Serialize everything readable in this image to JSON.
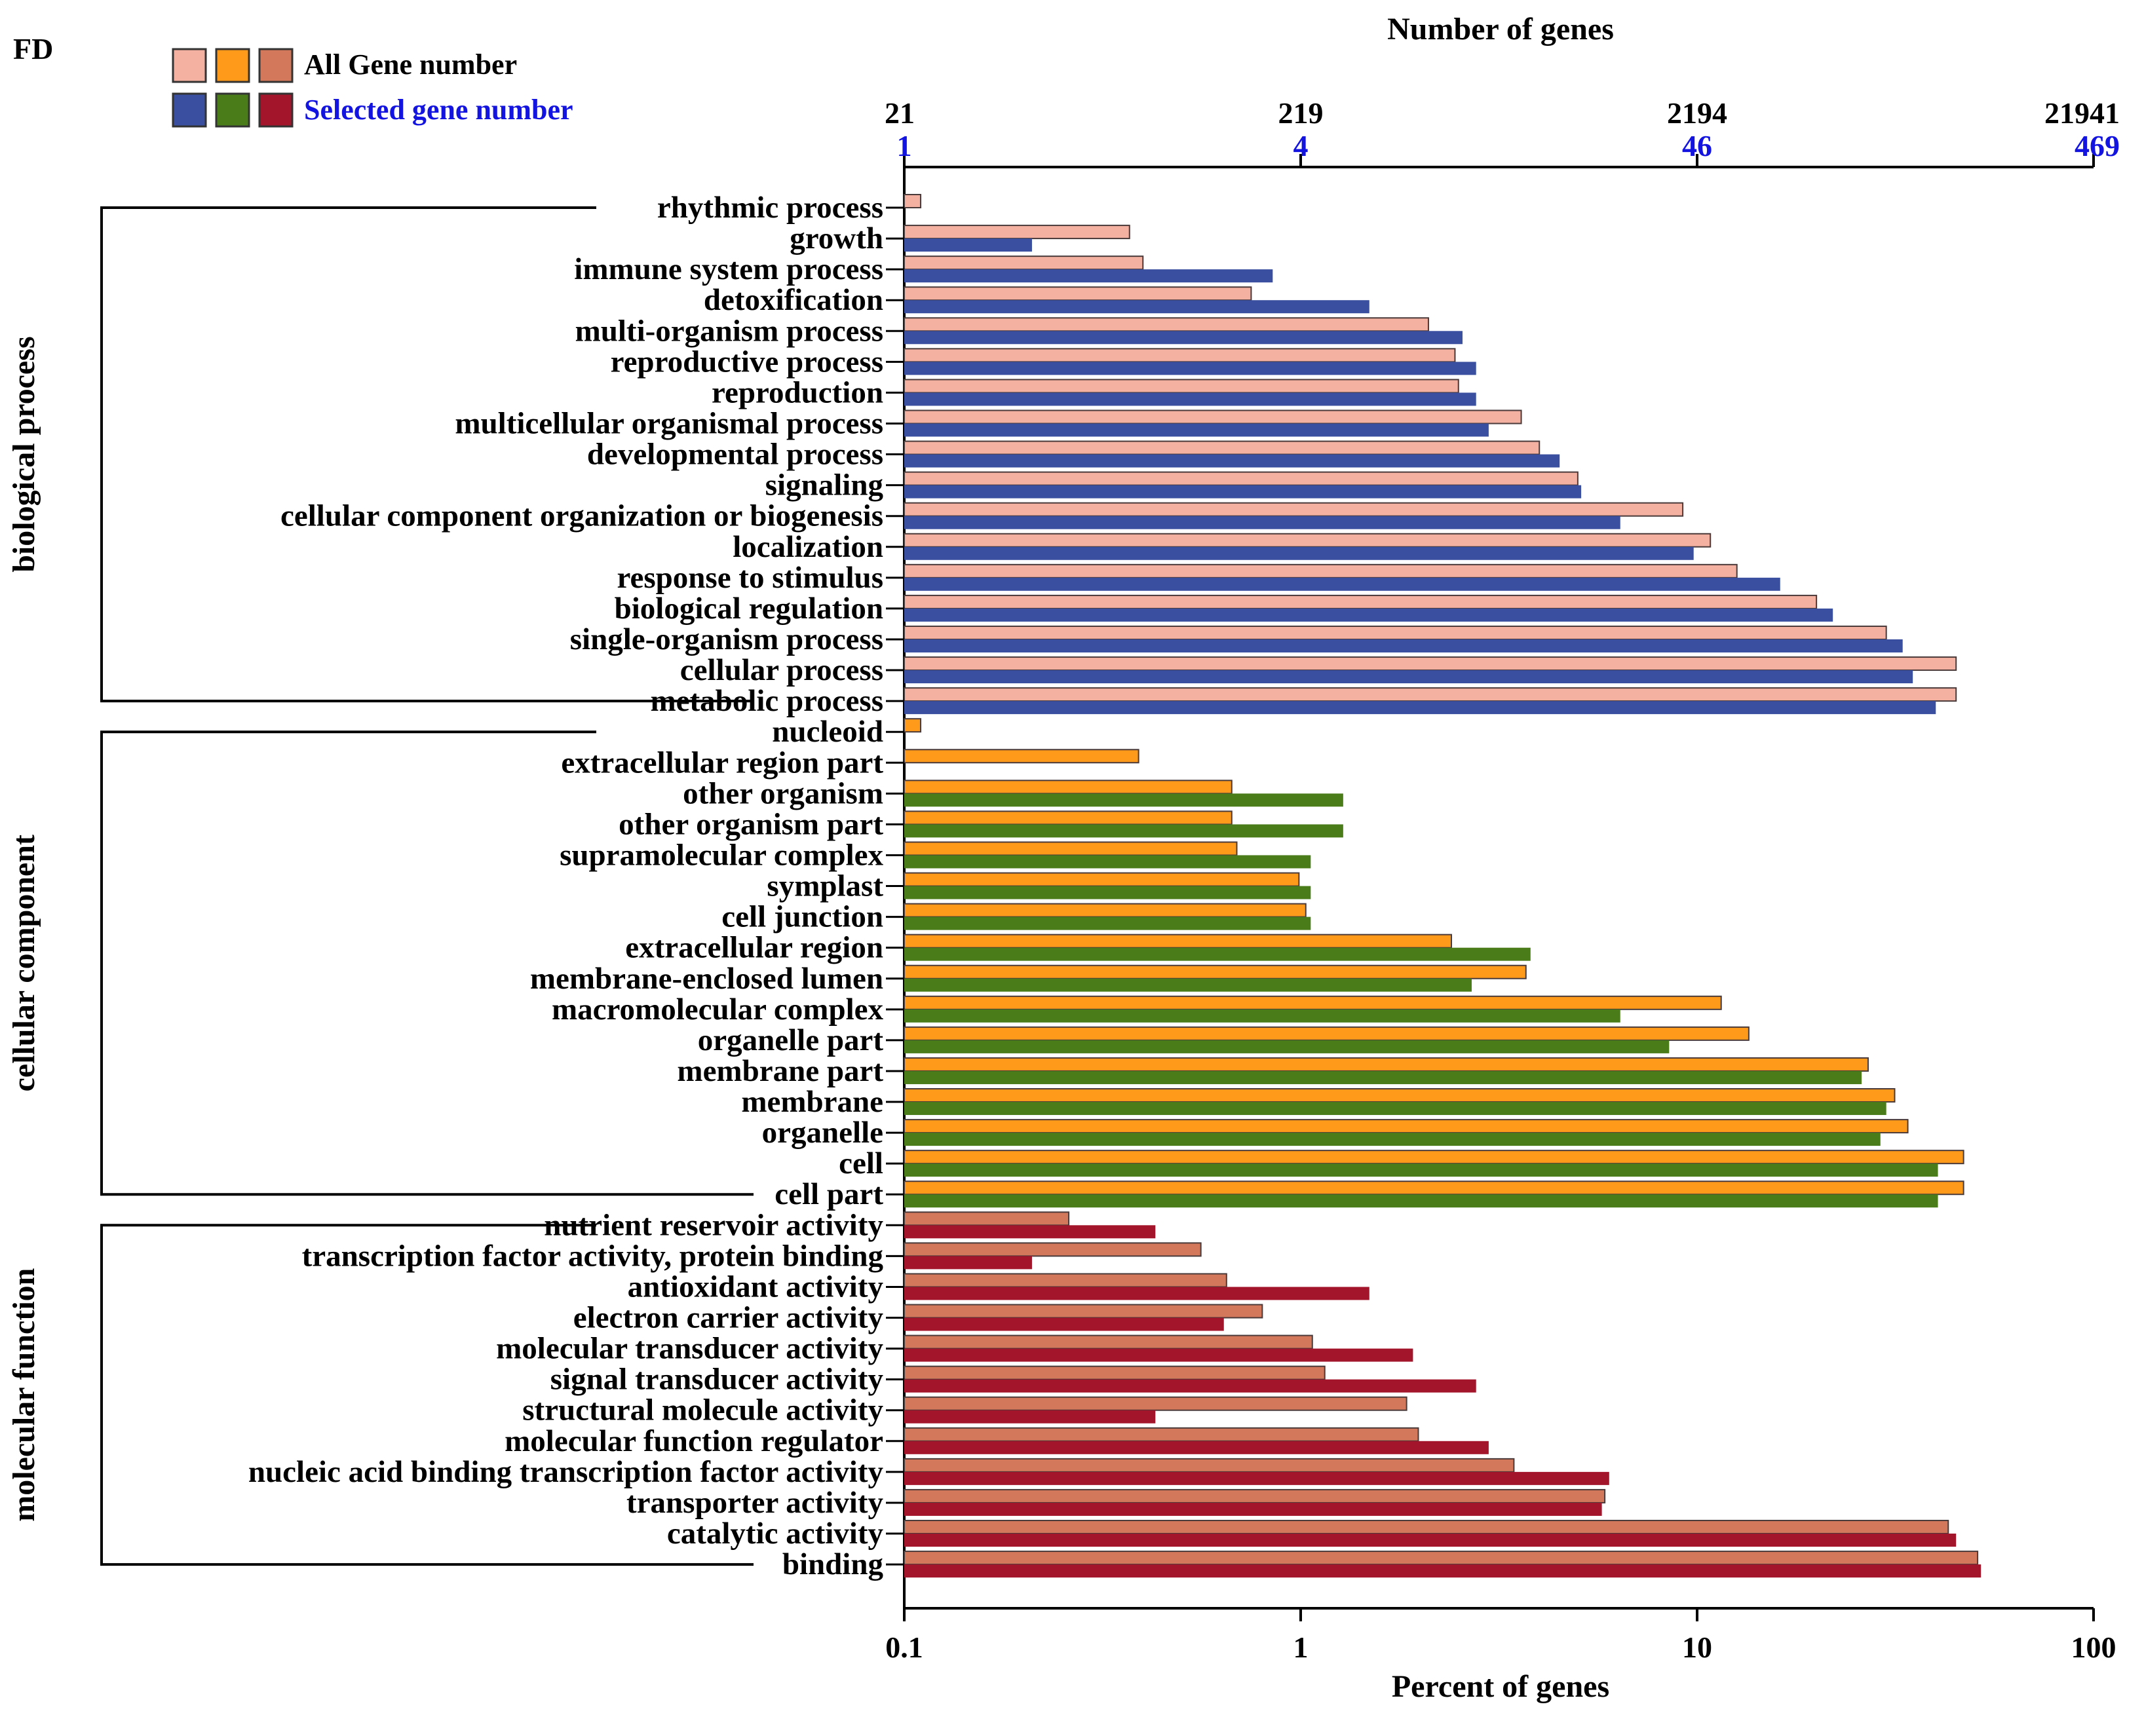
{
  "colors": {
    "bp_all": "#f4b0a0",
    "bp_sel": "#3a4f9f",
    "cc_all": "#ff9a1a",
    "cc_sel": "#4a7c1a",
    "mf_all": "#d3785a",
    "mf_sel": "#a3152a",
    "selected_label": "#1414e0",
    "line": "#000000"
  },
  "chart_data": {
    "type": "bar",
    "orientation": "horizontal",
    "panel_label": "FD",
    "top_axis_title": "Number of genes",
    "bottom_axis_title": "Percent of genes",
    "x_scale": "log",
    "xlim": [
      0.1,
      100
    ],
    "bottom_ticks": [
      {
        "value": 0.1,
        "label": "0.1"
      },
      {
        "value": 1,
        "label": "1"
      },
      {
        "value": 10,
        "label": "10"
      },
      {
        "value": 100,
        "label": "100"
      }
    ],
    "top_ticks_all": [
      {
        "value": 0.1,
        "label": "21"
      },
      {
        "value": 1,
        "label": "219"
      },
      {
        "value": 10,
        "label": "2194"
      },
      {
        "value": 100,
        "label": "21941"
      }
    ],
    "top_ticks_selected": [
      {
        "value": 0.1,
        "label": "1"
      },
      {
        "value": 1,
        "label": "4"
      },
      {
        "value": 10,
        "label": "46"
      },
      {
        "value": 100,
        "label": "469"
      }
    ],
    "legend": {
      "all_label": "All Gene number",
      "selected_label": "Selected gene number"
    },
    "series_names": [
      "All Gene number",
      "Selected gene number"
    ],
    "groups": [
      {
        "name": "biological process",
        "all_color_key": "bp_all",
        "sel_color_key": "bp_sel",
        "categories": [
          {
            "label": "rhythmic  process",
            "all": 0.11,
            "selected": null
          },
          {
            "label": "growth",
            "all": 0.37,
            "selected": 0.21
          },
          {
            "label": "immune system  process",
            "all": 0.4,
            "selected": 0.85
          },
          {
            "label": "detoxification",
            "all": 0.75,
            "selected": 1.49
          },
          {
            "label": "multi-organism  process",
            "all": 2.1,
            "selected": 2.56
          },
          {
            "label": "reproductive  process",
            "all": 2.45,
            "selected": 2.77
          },
          {
            "label": "reproduction",
            "all": 2.5,
            "selected": 2.77
          },
          {
            "label": "multicellular organismal  process",
            "all": 3.6,
            "selected": 2.98
          },
          {
            "label": "developmental  process",
            "all": 4.0,
            "selected": 4.5
          },
          {
            "label": "signaling",
            "all": 5.0,
            "selected": 5.1
          },
          {
            "label": "cellular component organization or biogenesis",
            "all": 9.2,
            "selected": 6.4
          },
          {
            "label": "localization",
            "all": 10.8,
            "selected": 9.8
          },
          {
            "label": "response to  stimulus",
            "all": 12.6,
            "selected": 16.2
          },
          {
            "label": "biological  regulation",
            "all": 20.0,
            "selected": 22.0
          },
          {
            "label": "single-organism  process",
            "all": 30.0,
            "selected": 33.0
          },
          {
            "label": "cellular  process",
            "all": 45.0,
            "selected": 35.0
          },
          {
            "label": "metabolic  process",
            "all": 45.0,
            "selected": 40.0
          }
        ]
      },
      {
        "name": "cellular component",
        "all_color_key": "cc_all",
        "sel_color_key": "cc_sel",
        "categories": [
          {
            "label": "nucleoid",
            "all": 0.11,
            "selected": null
          },
          {
            "label": "extracellular region part",
            "all": 0.39,
            "selected": null
          },
          {
            "label": "other   organism",
            "all": 0.67,
            "selected": 1.28
          },
          {
            "label": "other organism part",
            "all": 0.67,
            "selected": 1.28
          },
          {
            "label": "supramolecular complex",
            "all": 0.69,
            "selected": 1.06
          },
          {
            "label": "symplast",
            "all": 0.99,
            "selected": 1.06
          },
          {
            "label": "cell junction",
            "all": 1.03,
            "selected": 1.06
          },
          {
            "label": "extracellular region",
            "all": 2.4,
            "selected": 3.8
          },
          {
            "label": "membrane-enclosed lumen",
            "all": 3.7,
            "selected": 2.7
          },
          {
            "label": "macromolecular complex",
            "all": 11.5,
            "selected": 6.4
          },
          {
            "label": "organelle part",
            "all": 13.5,
            "selected": 8.5
          },
          {
            "label": "membrane part",
            "all": 27.0,
            "selected": 26.0
          },
          {
            "label": "membrane",
            "all": 31.5,
            "selected": 30.0
          },
          {
            "label": "organelle",
            "all": 34.0,
            "selected": 29.0
          },
          {
            "label": "cell",
            "all": 47.0,
            "selected": 40.5
          },
          {
            "label": "cell part",
            "all": 47.0,
            "selected": 40.5
          }
        ]
      },
      {
        "name": "molecular function",
        "all_color_key": "mf_all",
        "sel_color_key": "mf_sel",
        "categories": [
          {
            "label": "nutrient  reservoir activity",
            "all": 0.26,
            "selected": 0.43
          },
          {
            "label": "transcription factor activity, protein binding",
            "all": 0.56,
            "selected": 0.21
          },
          {
            "label": "antioxidant activity",
            "all": 0.65,
            "selected": 1.49
          },
          {
            "label": "electron carrier activity",
            "all": 0.8,
            "selected": 0.64
          },
          {
            "label": "molecular transducer activity",
            "all": 1.07,
            "selected": 1.92
          },
          {
            "label": "signal transducer activity",
            "all": 1.15,
            "selected": 2.77
          },
          {
            "label": "structural molecule activity",
            "all": 1.85,
            "selected": 0.43
          },
          {
            "label": "molecular function regulator",
            "all": 1.98,
            "selected": 2.98
          },
          {
            "label": "nucleic acid binding transcription factor activity",
            "all": 3.45,
            "selected": 6.0
          },
          {
            "label": "transporter activity",
            "all": 5.85,
            "selected": 5.75
          },
          {
            "label": "catalytic activity",
            "all": 43.0,
            "selected": 45.0
          },
          {
            "label": "binding",
            "all": 51.0,
            "selected": 52.0
          }
        ]
      }
    ]
  }
}
